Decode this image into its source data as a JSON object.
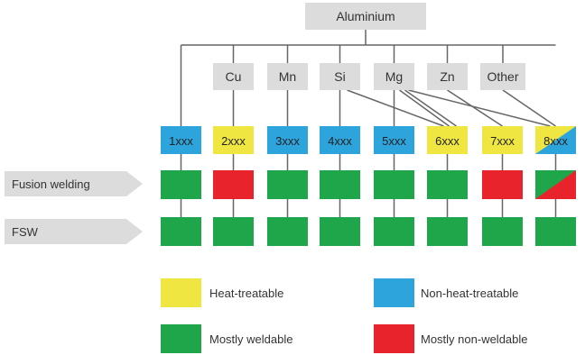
{
  "root": {
    "label": "Aluminium",
    "color": "#dcdcdc"
  },
  "elements": [
    "Cu",
    "Mn",
    "Si",
    "Mg",
    "Zn",
    "Other"
  ],
  "series": [
    {
      "label": "1xxx",
      "type": "non-heat-treatable"
    },
    {
      "label": "2xxx",
      "type": "heat-treatable"
    },
    {
      "label": "3xxx",
      "type": "non-heat-treatable"
    },
    {
      "label": "4xxx",
      "type": "non-heat-treatable"
    },
    {
      "label": "5xxx",
      "type": "non-heat-treatable"
    },
    {
      "label": "6xxx",
      "type": "heat-treatable"
    },
    {
      "label": "7xxx",
      "type": "heat-treatable"
    },
    {
      "label": "8xxx",
      "type": "mixed"
    }
  ],
  "rows": [
    {
      "label": "Fusion welding",
      "cells": [
        "weldable",
        "non-weldable",
        "weldable",
        "weldable",
        "weldable",
        "weldable",
        "non-weldable",
        "mixed"
      ]
    },
    {
      "label": "FSW",
      "cells": [
        "weldable",
        "weldable",
        "weldable",
        "weldable",
        "weldable",
        "weldable",
        "weldable",
        "weldable"
      ]
    }
  ],
  "legend": [
    {
      "label": "Heat-treatable",
      "color_key": "yellow"
    },
    {
      "label": "Non-heat-treatable",
      "color_key": "blue"
    },
    {
      "label": "Mostly weldable",
      "color_key": "green"
    },
    {
      "label": "Mostly non-weldable",
      "color_key": "red"
    }
  ],
  "colors": {
    "yellow": "#f0e641",
    "blue": "#2ea4dc",
    "green": "#1fa64a",
    "red": "#e8232b",
    "grey": "#dcdcdc",
    "line": "#666666"
  }
}
